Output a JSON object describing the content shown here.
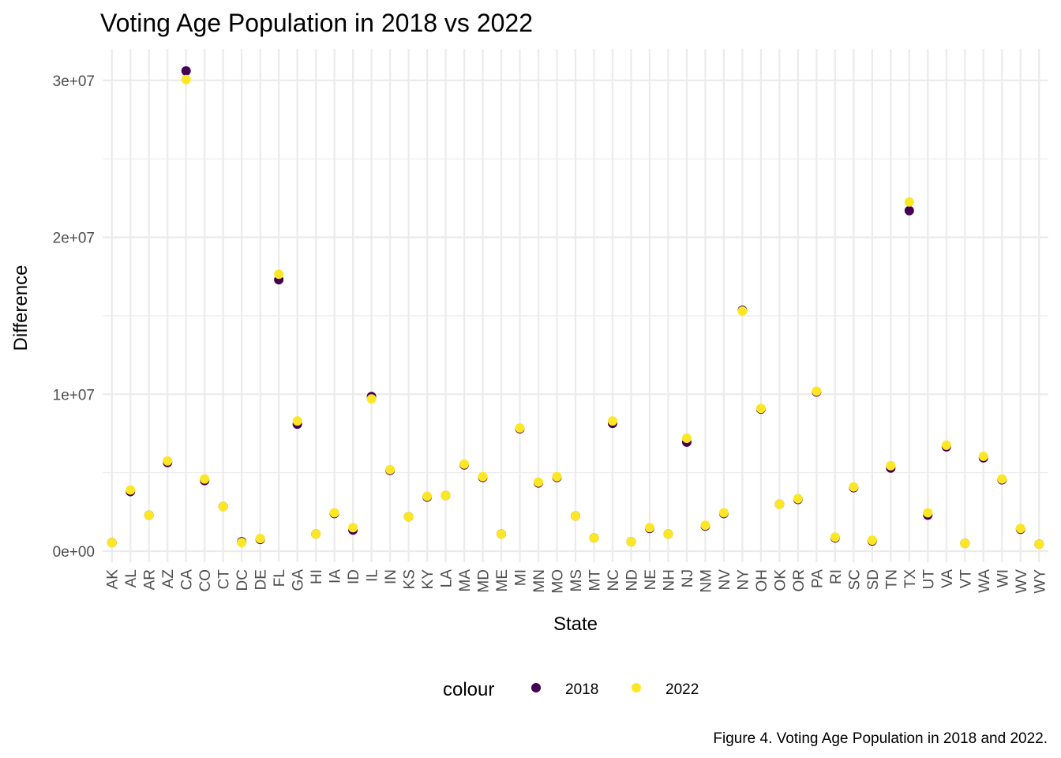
{
  "chart_data": {
    "type": "scatter",
    "title": "Voting Age Population in 2018 vs 2022",
    "xlabel": "State",
    "ylabel": "Difference",
    "caption": "Figure 4. Voting Age Population in 2018 and 2022.",
    "legend": {
      "title": "colour",
      "position": "bottom"
    },
    "grid": true,
    "ylim": [
      -700000,
      32000000
    ],
    "y_ticks": [
      0,
      10000000,
      20000000,
      30000000
    ],
    "y_tick_labels": [
      "0e+00",
      "1e+07",
      "2e+07",
      "3e+07"
    ],
    "categories": [
      "AK",
      "AL",
      "AR",
      "AZ",
      "CA",
      "CO",
      "CT",
      "DC",
      "DE",
      "FL",
      "GA",
      "HI",
      "IA",
      "ID",
      "IL",
      "IN",
      "KS",
      "KY",
      "LA",
      "MA",
      "MD",
      "ME",
      "MI",
      "MN",
      "MO",
      "MS",
      "MT",
      "NC",
      "ND",
      "NE",
      "NH",
      "NJ",
      "NM",
      "NV",
      "NY",
      "OH",
      "OK",
      "OR",
      "PA",
      "RI",
      "SC",
      "SD",
      "TN",
      "TX",
      "UT",
      "VA",
      "VT",
      "WA",
      "WI",
      "WV",
      "WY"
    ],
    "series": [
      {
        "name": "2018",
        "color": "#440154",
        "values": [
          550000,
          3800000,
          2300000,
          5650000,
          30600000,
          4500000,
          2850000,
          600000,
          750000,
          17300000,
          8100000,
          1100000,
          2400000,
          1350000,
          9850000,
          5150000,
          2200000,
          3450000,
          3550000,
          5500000,
          4700000,
          1100000,
          7800000,
          4350000,
          4700000,
          2250000,
          850000,
          8150000,
          600000,
          1450000,
          1100000,
          6950000,
          1600000,
          2400000,
          15350000,
          9050000,
          3000000,
          3300000,
          10150000,
          850000,
          4050000,
          650000,
          5300000,
          21700000,
          2300000,
          6650000,
          500000,
          5950000,
          4550000,
          1400000,
          450000
        ]
      },
      {
        "name": "2022",
        "color": "#FDE725",
        "values": [
          550000,
          3900000,
          2300000,
          5750000,
          30050000,
          4600000,
          2850000,
          550000,
          800000,
          17650000,
          8300000,
          1100000,
          2450000,
          1500000,
          9700000,
          5200000,
          2200000,
          3500000,
          3550000,
          5550000,
          4750000,
          1100000,
          7850000,
          4400000,
          4750000,
          2250000,
          850000,
          8300000,
          600000,
          1500000,
          1100000,
          7200000,
          1650000,
          2450000,
          15300000,
          9100000,
          3000000,
          3350000,
          10200000,
          900000,
          4100000,
          700000,
          5450000,
          22250000,
          2450000,
          6750000,
          500000,
          6050000,
          4600000,
          1450000,
          450000
        ]
      }
    ]
  }
}
